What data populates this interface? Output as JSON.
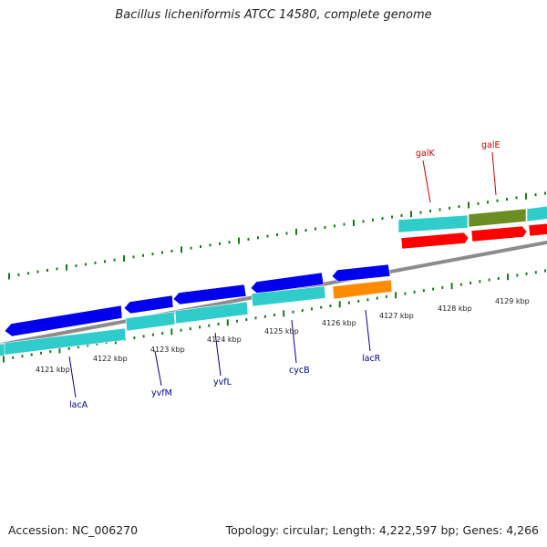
{
  "title": "Bacillus licheniformis ATCC 14580, complete genome",
  "accession_text": "Accession: NC_006270",
  "summary_text": "Topology: circular; Length: 4,222,597 bp; Genes: 4,266",
  "colors": {
    "backbone": "#8c8c8c",
    "tick": "#1a7a1a",
    "cds_forward": "#ff0000",
    "cds_reverse": "#0000ee",
    "feature_cyan": "#30cccc",
    "feature_olive": "#6b8e23",
    "feature_orange": "#ff8c00",
    "label_reverse": "#00008b",
    "label_forward": "#cc0000"
  },
  "ticks": [
    {
      "label": "4121 kbp"
    },
    {
      "label": "4122 kbp"
    },
    {
      "label": "4123 kbp"
    },
    {
      "label": "4124 kbp"
    },
    {
      "label": "4125 kbp"
    },
    {
      "label": "4126 kbp"
    },
    {
      "label": "4127 kbp"
    },
    {
      "label": "4128 kbp"
    },
    {
      "label": "4129 kbp"
    }
  ],
  "gene_labels": [
    {
      "name": "lacA",
      "strand": "reverse"
    },
    {
      "name": "yvfM",
      "strand": "reverse"
    },
    {
      "name": "yvfL",
      "strand": "reverse"
    },
    {
      "name": "cycB",
      "strand": "reverse"
    },
    {
      "name": "lacR",
      "strand": "reverse"
    },
    {
      "name": "galK",
      "strand": "forward"
    },
    {
      "name": "galE",
      "strand": "forward"
    }
  ]
}
